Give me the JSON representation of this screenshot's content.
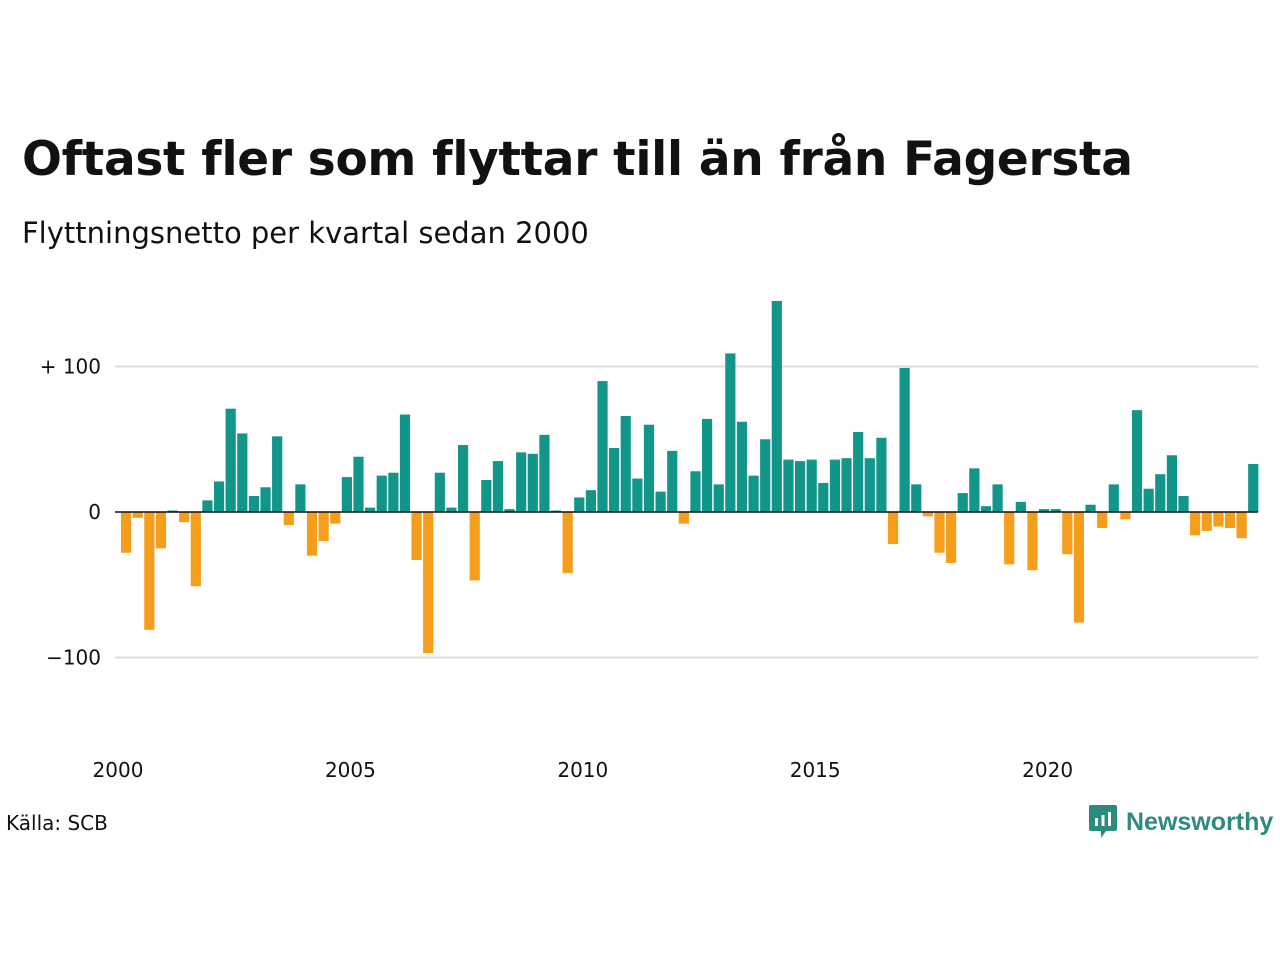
{
  "title": "Oftast fler som flyttar till än från Fagersta",
  "subtitle": "Flyttningsnetto per kvartal sedan 2000",
  "source": "Källa: SCB",
  "logo": {
    "name": "Newsworthy",
    "icon": "newsworthy-chart-bubble-icon"
  },
  "colors": {
    "positive": "#13968a",
    "negative": "#f59e1c",
    "grid": "#dddddd",
    "zero_line": "#111111",
    "logo": "#2c8a7e"
  },
  "chart_data": {
    "type": "bar",
    "title": "Oftast fler som flyttar till än från Fagersta",
    "subtitle": "Flyttningsnetto per kvartal sedan 2000",
    "xlabel": "",
    "ylabel": "",
    "start_year": 2000,
    "periods_per_year": 4,
    "ylim": [
      -160,
      150
    ],
    "grid": true,
    "y_ticks": [
      {
        "value": 100,
        "label": "+ 100"
      },
      {
        "value": 0,
        "label": "0"
      },
      {
        "value": -100,
        "label": "−100"
      }
    ],
    "x_ticks": [
      {
        "year": 2000,
        "label": "2000"
      },
      {
        "year": 2005,
        "label": "2005"
      },
      {
        "year": 2010,
        "label": "2010"
      },
      {
        "year": 2015,
        "label": "2015"
      },
      {
        "year": 2020,
        "label": "2020"
      }
    ],
    "values": [
      -28,
      -4,
      -81,
      -25,
      1,
      -7,
      -51,
      8,
      21,
      71,
      54,
      11,
      17,
      52,
      -9,
      19,
      -30,
      -20,
      -8,
      24,
      38,
      3,
      25,
      27,
      67,
      -33,
      -97,
      27,
      3,
      46,
      -47,
      22,
      35,
      2,
      41,
      40,
      53,
      1,
      -42,
      10,
      15,
      90,
      44,
      66,
      23,
      60,
      14,
      42,
      -8,
      28,
      64,
      19,
      109,
      62,
      25,
      50,
      145,
      36,
      35,
      36,
      20,
      36,
      37,
      55,
      37,
      51,
      -22,
      99,
      19,
      -3,
      -28,
      -35,
      13,
      30,
      4,
      19,
      -36,
      7,
      -40,
      2,
      2,
      -29,
      -76,
      5,
      -11,
      19,
      -5,
      70,
      16,
      26,
      39,
      11,
      -16,
      -13,
      -10,
      -11,
      -18,
      33
    ]
  }
}
